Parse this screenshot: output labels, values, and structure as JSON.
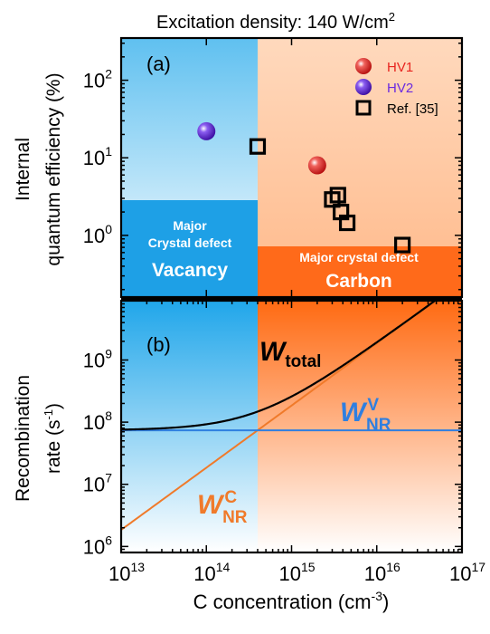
{
  "header": {
    "title_prefix": "Excitation density: 140 W/cm",
    "title_sup": "2"
  },
  "colors": {
    "vacancy": "#1ea0e6",
    "carbon": "#ff6a1a",
    "hv1": "#e8241f",
    "hv2": "#6a2be0",
    "w_total": "#000000",
    "w_nr_v": "#2f7fe0",
    "w_nr_c": "#f07a2a"
  },
  "chart_data": [
    {
      "panel_label": "(a)",
      "type": "scatter",
      "xscale": "log",
      "yscale": "log",
      "xlim": [
        10000000000000.0,
        1e+17
      ],
      "ylim": [
        0.16,
        350
      ],
      "ylabel_line1": "Internal",
      "ylabel_line2": "quantum efficiency (%)",
      "y_ticks": [
        {
          "value": 100,
          "base": "10",
          "exp": "2"
        },
        {
          "value": 10,
          "base": "10",
          "exp": "1"
        },
        {
          "value": 1,
          "base": "10",
          "exp": "0"
        }
      ],
      "region_boundary_x": 400000000000000.0,
      "regions": [
        {
          "label_lines": [
            "Major",
            "Crystal defect"
          ],
          "big_label": "Vacancy"
        },
        {
          "label_lines": [
            "Major crystal defect"
          ],
          "big_label": "Carbon"
        }
      ],
      "series": [
        {
          "name": "HV1",
          "marker": "sphere",
          "points": [
            {
              "x": 2000000000000000.0,
              "y": 8
            }
          ]
        },
        {
          "name": "HV2",
          "marker": "sphere",
          "points": [
            {
              "x": 100000000000000.0,
              "y": 22
            }
          ]
        },
        {
          "name": "Ref. [35]",
          "marker": "open-square",
          "points": [
            {
              "x": 400000000000000.0,
              "y": 14
            },
            {
              "x": 3500000000000000.0,
              "y": 3.3
            },
            {
              "x": 3000000000000000.0,
              "y": 2.9
            },
            {
              "x": 3800000000000000.0,
              "y": 2.0
            },
            {
              "x": 4500000000000000.0,
              "y": 1.45
            },
            {
              "x": 2e+16,
              "y": 0.75
            }
          ]
        }
      ],
      "legend_position": "top-right"
    },
    {
      "panel_label": "(b)",
      "type": "line",
      "xscale": "log",
      "yscale": "log",
      "xlim": [
        10000000000000.0,
        1e+17
      ],
      "ylim": [
        800000.0,
        9000000000.0
      ],
      "xlabel_prefix": "C concentration (cm",
      "xlabel_sup": "-3",
      "xlabel_suffix": ")",
      "ylabel_line1": "Recombination",
      "ylabel_prefix": "rate (s",
      "ylabel_sup": "-1",
      "ylabel_suffix": ")",
      "x_ticks": [
        {
          "value": 10000000000000.0,
          "base": "10",
          "exp": "13"
        },
        {
          "value": 100000000000000.0,
          "base": "10",
          "exp": "14"
        },
        {
          "value": 1000000000000000.0,
          "base": "10",
          "exp": "15"
        },
        {
          "value": 1e+16,
          "base": "10",
          "exp": "16"
        },
        {
          "value": 1e+17,
          "base": "10",
          "exp": "17"
        }
      ],
      "y_ticks": [
        {
          "value": 1000000000.0,
          "base": "10",
          "exp": "9"
        },
        {
          "value": 100000000.0,
          "base": "10",
          "exp": "8"
        },
        {
          "value": 10000000.0,
          "base": "10",
          "exp": "7"
        },
        {
          "value": 1000000.0,
          "base": "10",
          "exp": "6"
        }
      ],
      "region_boundary_x": 400000000000000.0,
      "series": [
        {
          "name": "W_total",
          "label_main": "W",
          "label_sub": "total",
          "constant_rate": 74000000.0,
          "slope_rate_at_1e13": 1850000.0,
          "combined": true
        },
        {
          "name": "W_NR^V",
          "label_main": "W",
          "label_sub": "NR",
          "label_sup": "V",
          "constant_rate": 74000000.0
        },
        {
          "name": "W_NR^C",
          "label_main": "W",
          "label_sub": "NR",
          "label_sup": "C",
          "slope_rate_at_1e13": 1850000.0
        }
      ]
    }
  ]
}
